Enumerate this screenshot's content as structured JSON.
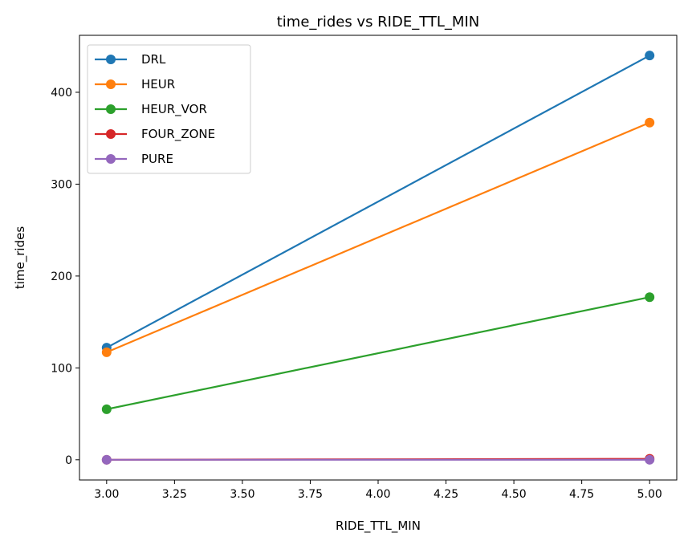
{
  "chart_data": {
    "type": "line",
    "title": "time_rides vs RIDE_TTL_MIN",
    "xlabel": "RIDE_TTL_MIN",
    "ylabel": "time_rides",
    "x": [
      3.0,
      5.0
    ],
    "xlim": [
      2.9,
      5.1
    ],
    "ylim": [
      -22,
      462
    ],
    "xticks": [
      "3.00",
      "3.25",
      "3.50",
      "3.75",
      "4.00",
      "4.25",
      "4.50",
      "4.75",
      "5.00"
    ],
    "yticks": [
      "0",
      "100",
      "200",
      "300",
      "400"
    ],
    "grid": false,
    "legend_position": "top-left",
    "series": [
      {
        "name": "DRL",
        "values": [
          122,
          440
        ],
        "color": "#1f77b4"
      },
      {
        "name": "HEUR",
        "values": [
          117,
          367
        ],
        "color": "#ff7f0e"
      },
      {
        "name": "HEUR_VOR",
        "values": [
          55,
          177
        ],
        "color": "#2ca02c"
      },
      {
        "name": "FOUR_ZONE",
        "values": [
          0,
          1
        ],
        "color": "#d62728"
      },
      {
        "name": "PURE",
        "values": [
          0,
          0
        ],
        "color": "#9467bd"
      }
    ]
  }
}
